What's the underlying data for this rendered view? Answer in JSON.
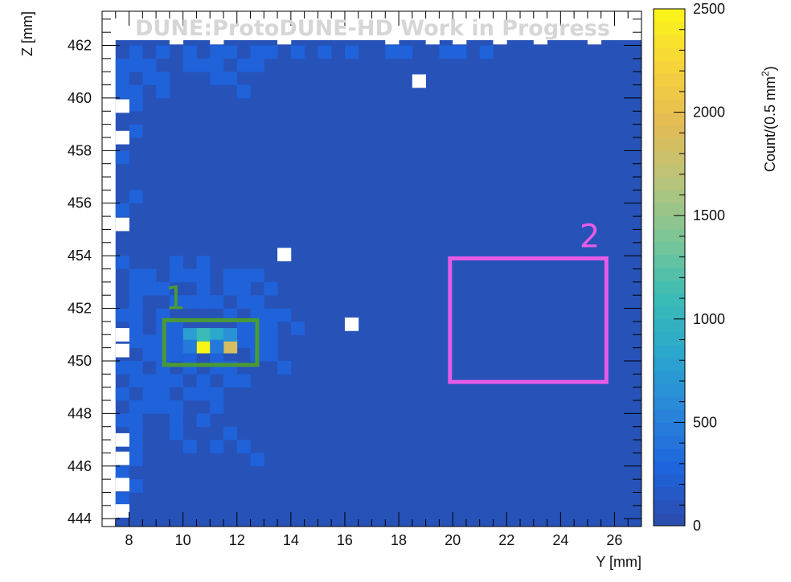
{
  "chart_data": {
    "type": "heatmap",
    "title": "DUNE:ProtoDUNE-HD Work in Progress",
    "xlabel": "Y [mm]",
    "ylabel": "Z [mm]",
    "zlabel": "Count/(0.5 mm",
    "zlabel_sup": "2",
    "zlabel_close": ")",
    "xlim": [
      7,
      27
    ],
    "ylim": [
      443.7,
      463.3
    ],
    "zlim": [
      0,
      2500
    ],
    "xticks": [
      8,
      10,
      12,
      14,
      16,
      18,
      20,
      22,
      24,
      26
    ],
    "yticks": [
      444,
      446,
      448,
      450,
      452,
      454,
      456,
      458,
      460,
      462
    ],
    "zticks": [
      0,
      500,
      1000,
      1500,
      2000,
      2500
    ],
    "bin_width_mm": 0.5,
    "populated_region": {
      "y_from": 7.5,
      "y_to": 27,
      "z_from": 443.7,
      "z_to": 462.2
    },
    "background_count": 80,
    "hot_bins": [
      {
        "y": 10.75,
        "z": 450.55,
        "count": 2500
      },
      {
        "y": 11.75,
        "z": 450.55,
        "count": 1850
      },
      {
        "y": 10.75,
        "z": 451.0,
        "count": 1100
      },
      {
        "y": 10.25,
        "z": 451.0,
        "count": 750
      },
      {
        "y": 11.25,
        "z": 451.0,
        "count": 850
      },
      {
        "y": 11.75,
        "z": 451.0,
        "count": 650
      },
      {
        "y": 11.25,
        "z": 450.55,
        "count": 450
      },
      {
        "y": 10.25,
        "z": 450.55,
        "count": 450
      }
    ],
    "medium_bins": [
      [
        8.25,
        461.75
      ],
      [
        9.25,
        461.75
      ],
      [
        10.25,
        461.75
      ],
      [
        11.25,
        461.75
      ],
      [
        11.75,
        461.75
      ],
      [
        12.75,
        461.75
      ],
      [
        13.25,
        461.75
      ],
      [
        14.25,
        461.75
      ],
      [
        15.25,
        461.75
      ],
      [
        16.25,
        461.75
      ],
      [
        17.75,
        461.75
      ],
      [
        18.25,
        461.75
      ],
      [
        19.75,
        461.75
      ],
      [
        20.25,
        461.75
      ],
      [
        21.25,
        461.75
      ],
      [
        7.75,
        461.25
      ],
      [
        8.25,
        461.25
      ],
      [
        8.75,
        461.25
      ],
      [
        10.25,
        461.25
      ],
      [
        10.75,
        461.25
      ],
      [
        11.25,
        461.25
      ],
      [
        12.25,
        461.25
      ],
      [
        12.75,
        461.25
      ],
      [
        7.75,
        460.75
      ],
      [
        8.75,
        460.75
      ],
      [
        9.25,
        460.75
      ],
      [
        11.25,
        460.75
      ],
      [
        11.75,
        460.75
      ],
      [
        7.75,
        460.25
      ],
      [
        8.25,
        460.25
      ],
      [
        9.25,
        460.25
      ],
      [
        12.25,
        460.25
      ],
      [
        8.25,
        459.75
      ],
      [
        8.25,
        458.75
      ],
      [
        7.75,
        457.75
      ],
      [
        8.25,
        456.25
      ],
      [
        7.75,
        455.75
      ],
      [
        7.75,
        453.75
      ],
      [
        9.75,
        453.75
      ],
      [
        10.75,
        453.75
      ],
      [
        8.25,
        453.25
      ],
      [
        8.75,
        453.25
      ],
      [
        9.75,
        453.25
      ],
      [
        10.25,
        453.25
      ],
      [
        10.75,
        453.25
      ],
      [
        11.75,
        453.25
      ],
      [
        12.25,
        453.25
      ],
      [
        12.75,
        453.25
      ],
      [
        8.25,
        452.75
      ],
      [
        8.75,
        452.75
      ],
      [
        9.25,
        452.75
      ],
      [
        10.75,
        452.75
      ],
      [
        11.75,
        452.75
      ],
      [
        12.25,
        452.75
      ],
      [
        13.25,
        452.75
      ],
      [
        8.25,
        452.25
      ],
      [
        9.75,
        452.25
      ],
      [
        10.25,
        452.25
      ],
      [
        10.75,
        452.25
      ],
      [
        11.25,
        452.25
      ],
      [
        12.25,
        452.25
      ],
      [
        12.75,
        452.25
      ],
      [
        7.75,
        451.75
      ],
      [
        8.25,
        451.75
      ],
      [
        9.25,
        451.75
      ],
      [
        11.75,
        451.75
      ],
      [
        12.75,
        451.75
      ],
      [
        13.25,
        451.75
      ],
      [
        13.75,
        451.75
      ],
      [
        8.25,
        451.25
      ],
      [
        9.25,
        451.25
      ],
      [
        9.75,
        451.25
      ],
      [
        12.25,
        451.25
      ],
      [
        12.75,
        451.25
      ],
      [
        13.25,
        451.25
      ],
      [
        14.25,
        451.25
      ],
      [
        8.25,
        450.75
      ],
      [
        8.75,
        450.75
      ],
      [
        9.25,
        450.75
      ],
      [
        9.75,
        450.75
      ],
      [
        12.25,
        450.75
      ],
      [
        12.75,
        450.75
      ],
      [
        13.25,
        450.75
      ],
      [
        8.75,
        450.25
      ],
      [
        9.25,
        450.25
      ],
      [
        9.75,
        450.25
      ],
      [
        10.25,
        450.25
      ],
      [
        11.25,
        450.25
      ],
      [
        12.75,
        450.25
      ],
      [
        13.25,
        450.25
      ],
      [
        7.75,
        449.75
      ],
      [
        8.25,
        449.75
      ],
      [
        9.25,
        449.75
      ],
      [
        10.25,
        449.75
      ],
      [
        11.25,
        449.75
      ],
      [
        11.75,
        449.75
      ],
      [
        13.75,
        449.75
      ],
      [
        8.25,
        449.25
      ],
      [
        8.75,
        449.25
      ],
      [
        9.25,
        449.25
      ],
      [
        9.75,
        449.25
      ],
      [
        10.75,
        449.25
      ],
      [
        11.75,
        449.25
      ],
      [
        12.25,
        449.25
      ],
      [
        7.75,
        448.75
      ],
      [
        8.75,
        448.75
      ],
      [
        9.25,
        448.75
      ],
      [
        10.25,
        448.75
      ],
      [
        10.75,
        448.75
      ],
      [
        11.25,
        448.75
      ],
      [
        8.25,
        448.25
      ],
      [
        8.75,
        448.25
      ],
      [
        9.25,
        448.25
      ],
      [
        9.75,
        448.25
      ],
      [
        11.25,
        448.25
      ],
      [
        7.75,
        447.75
      ],
      [
        8.25,
        447.75
      ],
      [
        9.75,
        447.75
      ],
      [
        10.75,
        447.75
      ],
      [
        8.25,
        447.25
      ],
      [
        9.75,
        447.25
      ],
      [
        11.75,
        447.25
      ],
      [
        8.25,
        446.75
      ],
      [
        10.25,
        446.75
      ],
      [
        11.25,
        446.75
      ],
      [
        12.25,
        446.75
      ],
      [
        8.25,
        446.25
      ],
      [
        12.75,
        446.25
      ],
      [
        7.75,
        445.75
      ],
      [
        8.25,
        445.25
      ],
      [
        7.75,
        444.75
      ]
    ],
    "medium_count": 260,
    "empty_bins": [
      [
        9.75,
        462.3
      ],
      [
        11.25,
        462.3
      ],
      [
        13.75,
        462.3
      ],
      [
        17.75,
        462.3
      ],
      [
        19.25,
        462.3
      ],
      [
        20.25,
        462.3
      ],
      [
        21.75,
        462.3
      ],
      [
        23.25,
        462.3
      ],
      [
        25.25,
        462.3
      ],
      [
        18.75,
        460.65
      ],
      [
        13.75,
        454.05
      ],
      [
        16.25,
        451.4
      ],
      [
        7.75,
        459.7
      ],
      [
        7.75,
        458.5
      ],
      [
        7.75,
        455.2
      ],
      [
        7.75,
        451.0
      ],
      [
        7.75,
        450.4
      ],
      [
        7.75,
        447.0
      ],
      [
        7.75,
        446.3
      ],
      [
        7.75,
        445.3
      ],
      [
        7.75,
        444.3
      ]
    ],
    "annotations": [
      {
        "label": "1",
        "y_from": 9.3,
        "y_to": 12.75,
        "z_from": 449.85,
        "z_to": 451.55,
        "color": "#4a9a35"
      },
      {
        "label": "2",
        "y_from": 19.9,
        "y_to": 25.7,
        "z_from": 449.2,
        "z_to": 453.9,
        "color": "#e75be7"
      }
    ],
    "colors": {
      "background": "#2b4baa",
      "medium": "#1e64dc",
      "empty": "#ffffff",
      "palette_stops": [
        "#2b4baa",
        "#1e64dc",
        "#2a86db",
        "#2aa7cd",
        "#3cbcb4",
        "#7cc697",
        "#b9c47a",
        "#e4bb55",
        "#f7d33b",
        "#f9f617"
      ]
    }
  }
}
